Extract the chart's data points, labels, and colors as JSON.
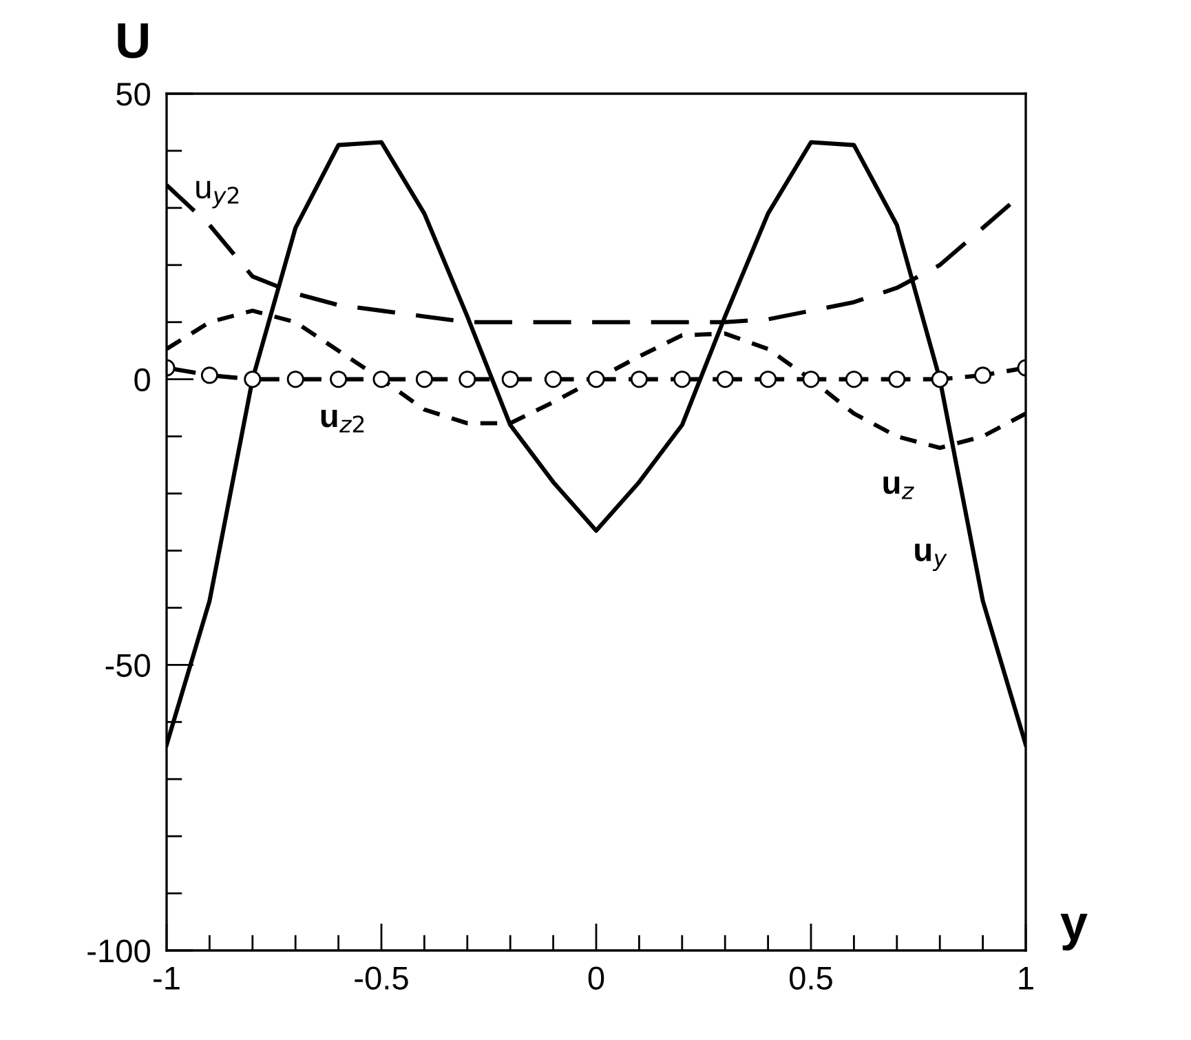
{
  "chart_data": {
    "type": "line",
    "xlabel": "y",
    "ylabel": "U",
    "x": [
      -1,
      -0.9,
      -0.8,
      -0.7,
      -0.6,
      -0.5,
      -0.4,
      -0.3,
      -0.2,
      -0.1,
      0,
      0.1,
      0.2,
      0.3,
      0.4,
      0.5,
      0.6,
      0.7,
      0.8,
      0.9,
      1
    ],
    "series": [
      {
        "name": "u$_{y}$",
        "color": "#000000",
        "line_style": "solid",
        "marker": "none",
        "values": [
          -64,
          -38.8,
          0,
          26.5,
          41,
          41.5,
          29,
          11,
          -8,
          -18,
          -26.5,
          -18,
          -8,
          11,
          29,
          41.5,
          41,
          27,
          0,
          -38.8,
          -64
        ]
      },
      {
        "name": "u$_{y2}$",
        "color": "#000000",
        "line_style": "dashed",
        "marker": "none",
        "values": [
          34,
          27,
          18,
          15,
          13,
          12,
          11,
          10,
          10,
          10,
          10,
          10,
          10,
          10,
          10.5,
          12,
          13.5,
          16,
          20,
          26.5,
          33
        ]
      },
      {
        "name": "u$_{z}$",
        "color": "#000000",
        "line_style": "dashed",
        "marker": "none",
        "values": [
          5.3,
          10,
          12,
          10,
          5,
          0,
          -5.3,
          -7.7,
          -7.7,
          -4,
          0,
          4,
          7.7,
          8,
          5.3,
          0,
          -6,
          -10,
          -12,
          -10,
          -6
        ]
      },
      {
        "name": "u$_{z2}$",
        "color": "#000000",
        "line_style": "dashed",
        "marker": "circle",
        "values": [
          2,
          0.7,
          0,
          0,
          0,
          0,
          0,
          0,
          0,
          0,
          0,
          0,
          0,
          0,
          0,
          0,
          0,
          0,
          0,
          0.7,
          2
        ]
      }
    ],
    "xlim": [
      -1,
      1
    ],
    "ylim": [
      -100,
      50
    ],
    "xticks": [
      -1,
      {
        "value": -0.9,
        "label": null
      },
      {
        "value": -0.8,
        "label": null
      },
      {
        "value": -0.7,
        "label": null
      },
      {
        "value": -0.6,
        "label": null
      },
      -0.5,
      {
        "value": -0.4,
        "label": null
      },
      {
        "value": -0.3,
        "label": null
      },
      {
        "value": -0.2,
        "label": null
      },
      {
        "value": -0.1,
        "label": null
      },
      0,
      {
        "value": 0.1,
        "label": null
      },
      {
        "value": 0.2,
        "label": null
      },
      {
        "value": 0.3,
        "label": null
      },
      {
        "value": 0.4,
        "label": null
      },
      0.5,
      {
        "value": 0.6,
        "label": null
      },
      {
        "value": 0.7,
        "label": null
      },
      {
        "value": 0.8,
        "label": null
      },
      {
        "value": 0.9,
        "label": null
      },
      1
    ],
    "yticks": [
      -100,
      {
        "value": -90,
        "label": null
      },
      {
        "value": -80,
        "label": null
      },
      {
        "value": -70,
        "label": null
      },
      {
        "value": -60,
        "label": null
      },
      -50,
      {
        "value": -40,
        "label": null
      },
      {
        "value": -30,
        "label": null
      },
      {
        "value": -20,
        "label": null
      },
      {
        "value": -10,
        "label": null
      },
      0,
      {
        "value": 10,
        "label": null
      },
      {
        "value": 20,
        "label": null
      },
      {
        "value": 30,
        "label": null
      },
      {
        "value": 40,
        "label": null
      },
      50
    ],
    "grid": false,
    "legend": false
  }
}
